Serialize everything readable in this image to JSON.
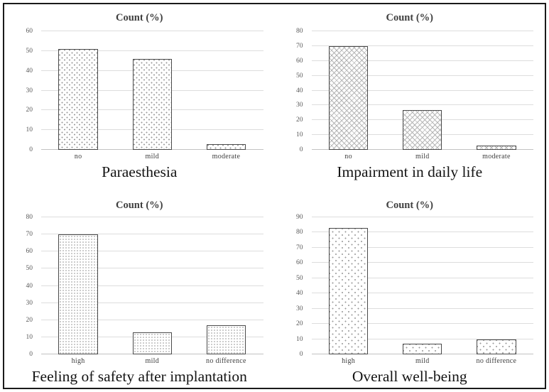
{
  "figure": {
    "border_color": "#1a1a1a",
    "background": "#ffffff"
  },
  "chart_data": [
    {
      "type": "bar",
      "title": "Count (%)",
      "caption": "Paraesthesia",
      "categories": [
        "no",
        "mild",
        "moderate"
      ],
      "values": [
        51,
        46,
        3
      ],
      "xlabel": "",
      "ylabel": "",
      "ylim": [
        0,
        60
      ],
      "ystep": 10,
      "grid": true,
      "legend": "none",
      "pattern": "dash"
    },
    {
      "type": "bar",
      "title": "Count (%)",
      "caption": "Impairment in daily life",
      "categories": [
        "no",
        "mild",
        "moderate"
      ],
      "values": [
        70,
        27,
        3
      ],
      "xlabel": "",
      "ylabel": "",
      "ylim": [
        0,
        80
      ],
      "ystep": 10,
      "grid": true,
      "legend": "none",
      "pattern": "diamond"
    },
    {
      "type": "bar",
      "title": "Count (%)",
      "caption": "Feeling of safety after implantation",
      "categories": [
        "high",
        "mild",
        "no difference"
      ],
      "values": [
        70,
        13,
        17
      ],
      "xlabel": "",
      "ylabel": "",
      "ylim": [
        0,
        80
      ],
      "ystep": 10,
      "grid": true,
      "legend": "none",
      "pattern": "dense-dot"
    },
    {
      "type": "bar",
      "title": "Count (%)",
      "caption": "Overall well-being",
      "categories": [
        "high",
        "mild",
        "no difference"
      ],
      "values": [
        83,
        7,
        10
      ],
      "xlabel": "",
      "ylabel": "",
      "ylim": [
        0,
        90
      ],
      "ystep": 10,
      "grid": true,
      "legend": "none",
      "pattern": "sparse-dot"
    }
  ],
  "colors": {
    "grid_line": "#dddddd",
    "axis_line": "#c2c2c2",
    "tick_text": "#595959",
    "category_text": "#404040",
    "title_text": "#3f3f3f",
    "caption_text": "#141414",
    "bar_border": "#4a4a4a",
    "pattern_ink": "#9a9a9a"
  }
}
